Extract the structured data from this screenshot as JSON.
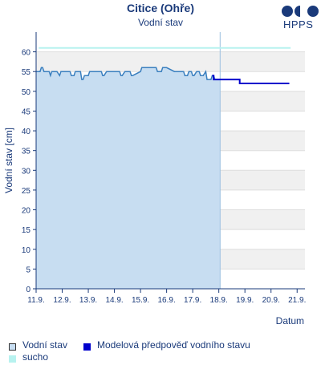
{
  "header": {
    "title": "Citice (Ohře)",
    "subtitle": "Vodní stav",
    "logo_text": "HPPS"
  },
  "legend": {
    "items": [
      {
        "label": "Vodní stav",
        "color": "#c7ddf1",
        "border": "#333333"
      },
      {
        "label": "Modelová předpověď vodního stavu",
        "color": "#0000cc",
        "border": "#0000cc"
      },
      {
        "label": "sucho",
        "color": "#b7f2ef",
        "border": "#b7f2ef"
      }
    ]
  },
  "chart_data": {
    "type": "line",
    "title": "Citice (Ohře)",
    "subtitle": "Vodní stav",
    "xlabel": "Datum",
    "ylabel": "Vodní stav [cm]",
    "ylim": [
      0,
      65
    ],
    "xlim": [
      11,
      21.3
    ],
    "x_ticks": [
      "11.9.",
      "12.9.",
      "13.9.",
      "14.9.",
      "15.9.",
      "16.9.",
      "17.9.",
      "18.9.",
      "19.9.",
      "20.9.",
      "21.9."
    ],
    "y_ticks": [
      0,
      5,
      10,
      15,
      20,
      25,
      30,
      35,
      40,
      45,
      50,
      55,
      60
    ],
    "series": [
      {
        "name": "Vodní stav",
        "color": "#3a7fbf",
        "fill": "#c7ddf1",
        "x": [
          11.0,
          11.15,
          11.2,
          11.25,
          11.3,
          11.5,
          11.55,
          11.6,
          11.7,
          11.8,
          11.9,
          11.95,
          12.0,
          12.3,
          12.35,
          12.45,
          12.5,
          12.7,
          12.75,
          12.8,
          12.85,
          13.0,
          13.05,
          13.5,
          13.55,
          13.6,
          13.7,
          14.0,
          14.2,
          14.25,
          14.3,
          14.4,
          14.6,
          14.65,
          14.7,
          15.0,
          15.05,
          15.6,
          15.65,
          15.8,
          15.85,
          16.0,
          16.3,
          16.4,
          16.65,
          16.7,
          16.8,
          16.85,
          16.95,
          17.0,
          17.05,
          17.15,
          17.25,
          17.3,
          17.4,
          17.5,
          17.55,
          17.7,
          17.75,
          17.8,
          17.85,
          18.0,
          18.05
        ],
        "y": [
          55,
          55,
          56,
          56,
          55,
          55,
          54,
          55,
          55,
          55,
          54,
          55,
          55,
          55,
          54,
          54,
          55,
          55,
          53,
          53,
          54,
          54,
          55,
          55,
          54,
          54,
          55,
          55,
          55,
          54,
          54,
          55,
          55,
          54,
          54,
          55,
          56,
          56,
          55,
          55,
          56,
          56,
          55,
          55,
          55,
          54,
          54,
          55,
          55,
          54,
          54,
          55,
          55,
          54,
          54,
          55,
          53,
          53,
          54,
          54,
          53,
          53,
          53
        ]
      },
      {
        "name": "Modelová předpověď vodního stavu",
        "color": "#0000cc",
        "x": [
          17.75,
          17.8,
          17.8,
          18.8,
          18.8,
          20.7
        ],
        "y": [
          54,
          54,
          53,
          53,
          52,
          52
        ]
      },
      {
        "name": "sucho",
        "color": "#b7f2ef",
        "x": [
          11.1,
          20.75
        ],
        "y": [
          61,
          61
        ]
      }
    ],
    "observed_until": 18.05,
    "grid": true
  }
}
